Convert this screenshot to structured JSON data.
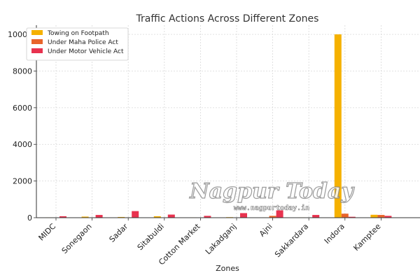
{
  "chart_data": {
    "type": "bar",
    "title": "Traffic Actions Across Different Zones",
    "xlabel": "Zones",
    "ylabel": "",
    "ylim": [
      0,
      10500
    ],
    "yticks": [
      0,
      2000,
      4000,
      6000,
      8000,
      10000
    ],
    "grid": true,
    "legend_position": "top-left",
    "categories": [
      "MIDC",
      "Sonegaon",
      "Sadar",
      "Sitabuldi",
      "Cotton Market",
      "Lakadganj",
      "Ajni",
      "Sakkardara",
      "Indora",
      "Kamptee"
    ],
    "series": [
      {
        "name": "Towing on Footpath",
        "color": "#f5b100",
        "values": [
          20,
          60,
          40,
          80,
          20,
          30,
          20,
          20,
          10000,
          160
        ]
      },
      {
        "name": "Under Maha Police Act",
        "color": "#e8642b",
        "values": [
          10,
          20,
          20,
          20,
          10,
          10,
          100,
          10,
          220,
          150
        ]
      },
      {
        "name": "Under Motor Vehicle Act",
        "color": "#e8324f",
        "values": [
          80,
          150,
          360,
          170,
          100,
          250,
          400,
          150,
          50,
          100
        ]
      }
    ]
  },
  "watermark": {
    "brand": "Nagpur Today",
    "url": "www.nagpurtoday.in"
  }
}
